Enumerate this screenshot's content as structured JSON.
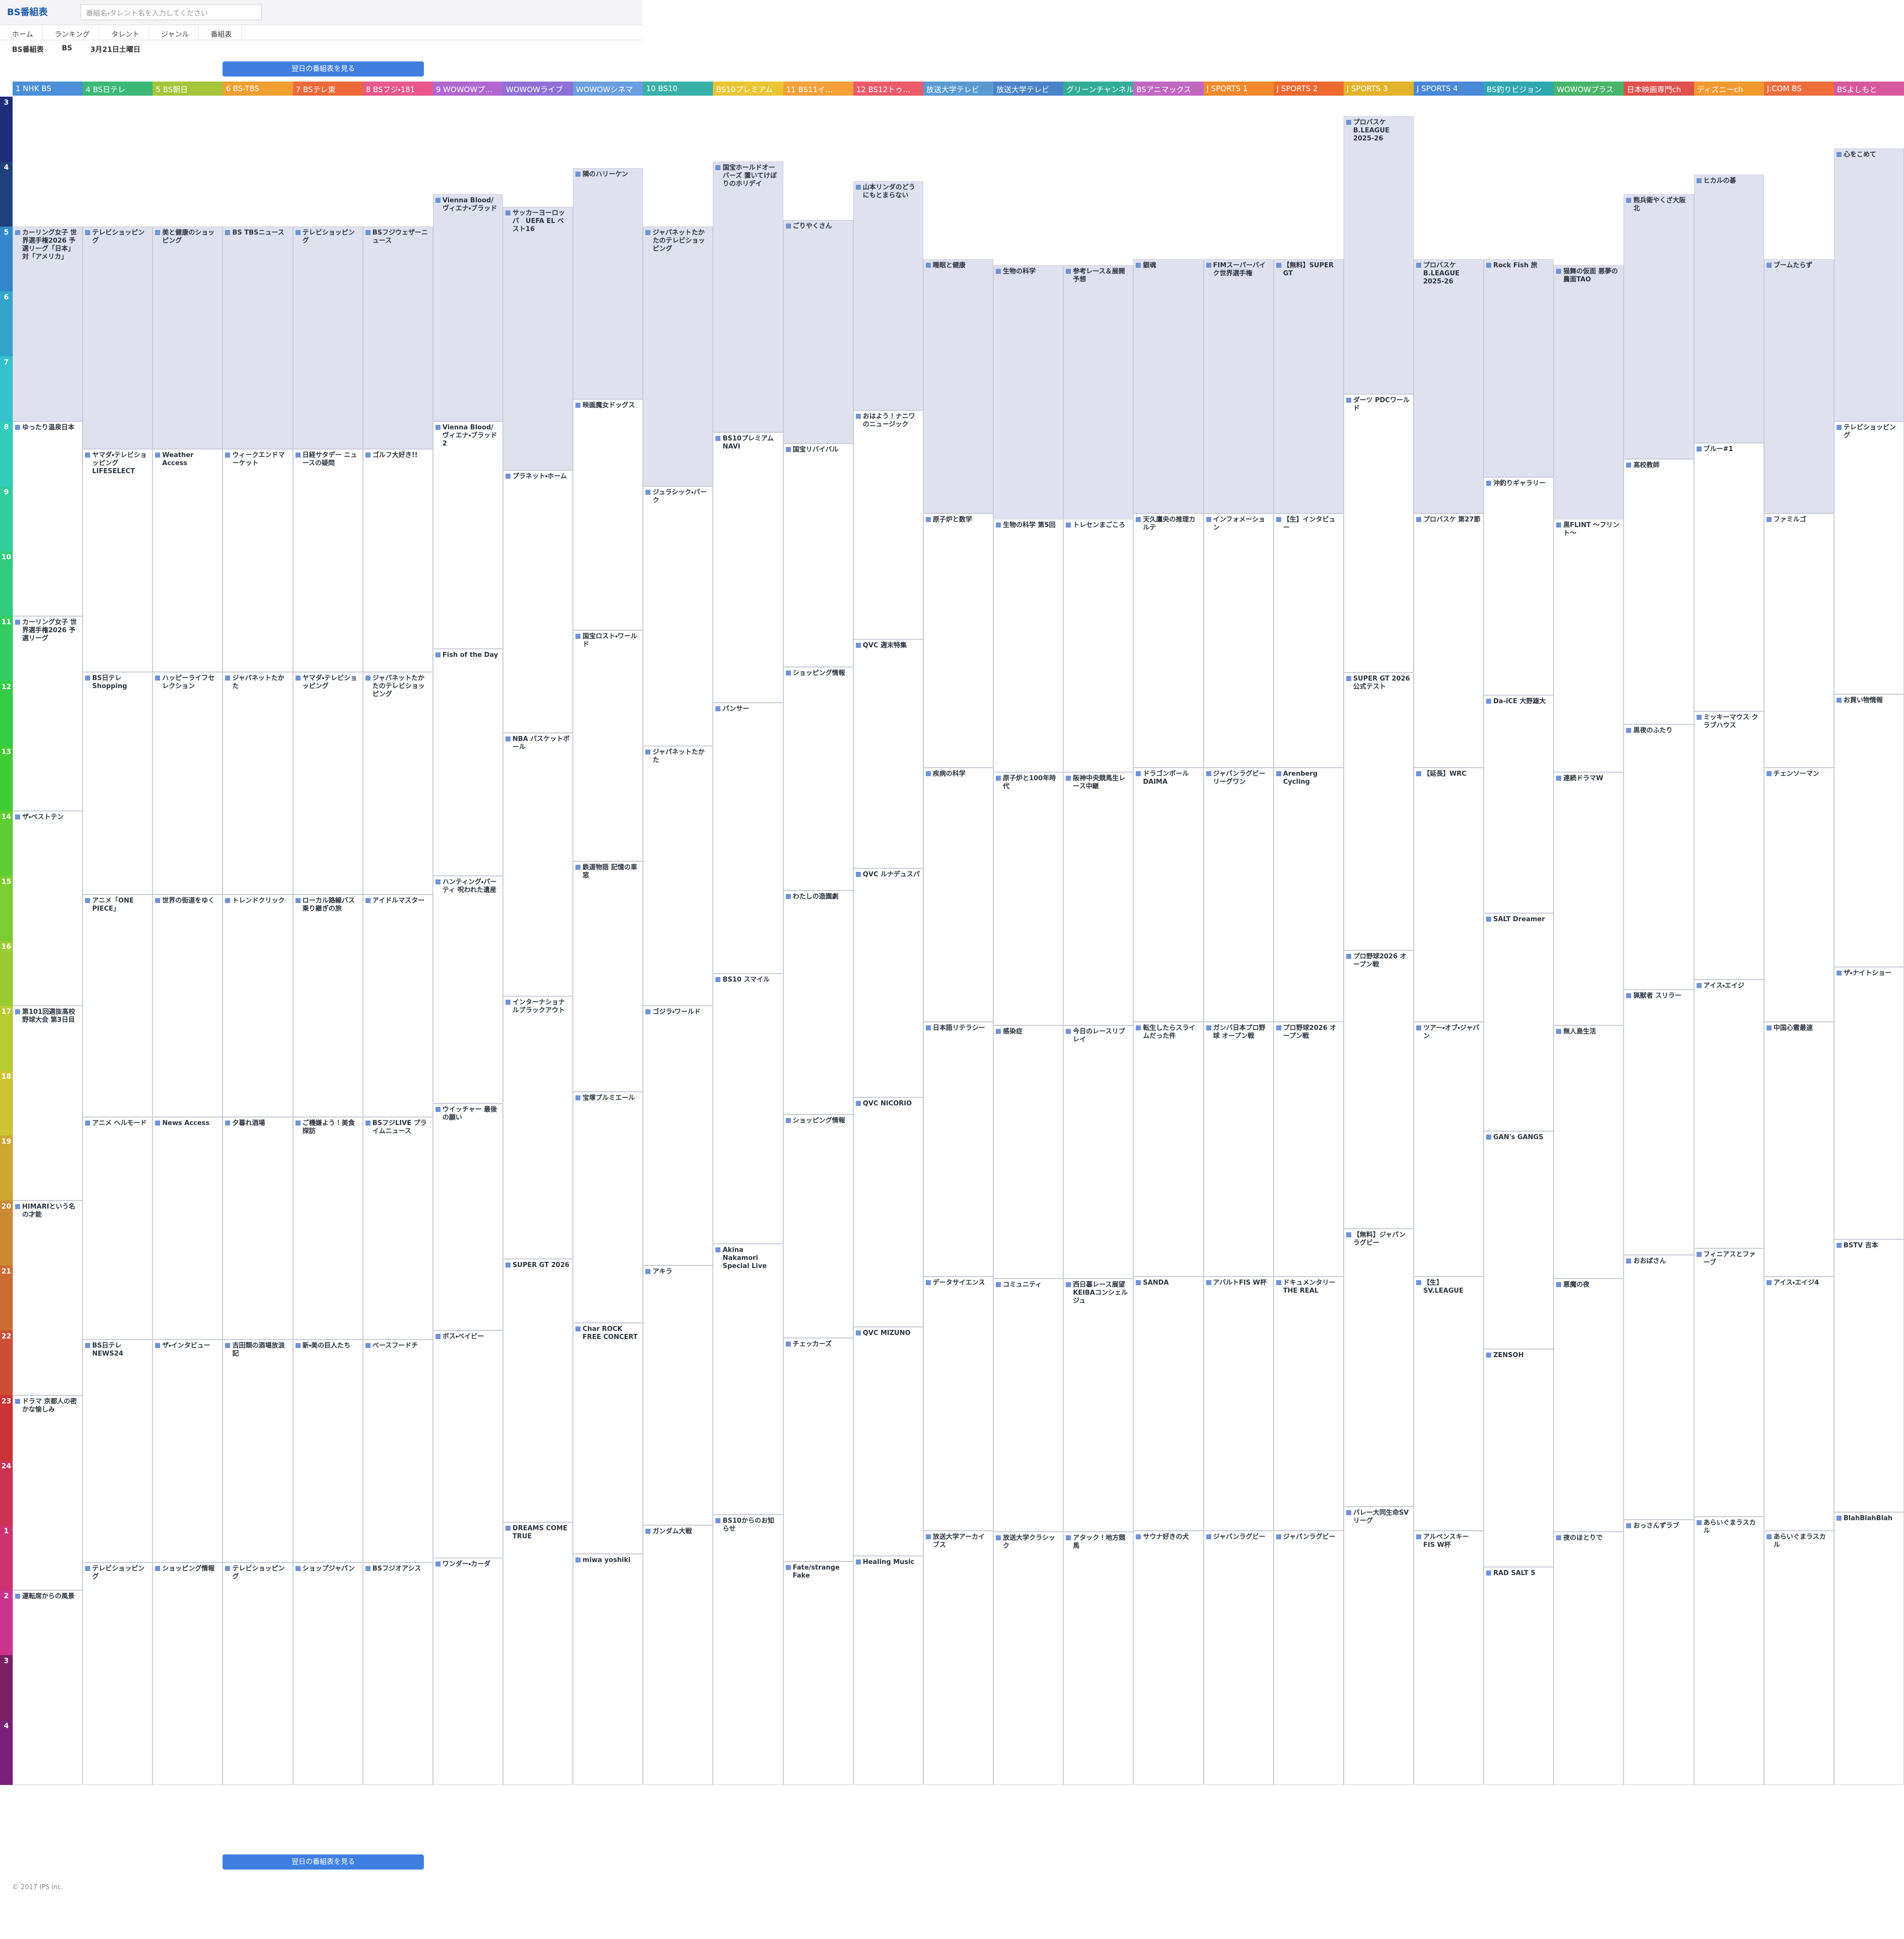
{
  "header": {
    "logo": "BS番組表",
    "search_placeholder": "番組名・タレント名を入力してください"
  },
  "nav": [
    "ホーム",
    "ランキング",
    "タレント",
    "ジャンル",
    "番組表"
  ],
  "selectors": [
    "BS番組表",
    "BS",
    "3月21日土曜日"
  ],
  "next_day_button": "翌日の番組表を見る",
  "hours": [
    3,
    4,
    5,
    6,
    7,
    8,
    9,
    10,
    11,
    12,
    13,
    14,
    15,
    16,
    17,
    18,
    19,
    20,
    21,
    22,
    23,
    24,
    1,
    2,
    3,
    4
  ],
  "channels": [
    {
      "name": "1 NHK BS",
      "color": "#4a8fd8",
      "programs": [
        "カーリング女子 世界選手権2026 予選リーグ「日本」対「アメリカ」",
        "ゆったり温泉日本",
        "カーリング女子 世界選手権2026 予選リーグ",
        "ザ・ベストテン",
        "第101回選抜高校野球大会 第3日目",
        "HIMARIという名の才能",
        "ドラマ 京都人の密かな愉しみ",
        "運転席からの風景"
      ]
    },
    {
      "name": "4 BS日テレ",
      "color": "#3cb878",
      "programs": [
        "テレビショッピング",
        "ヤマダ・テレビショッピング LIFESELECT",
        "BS日テレ Shopping",
        "アニメ「ONE PIECE」",
        "アニメ ヘルモード",
        "BS日テレNEWS24",
        "テレビショッピング"
      ]
    },
    {
      "name": "5 BS朝日",
      "color": "#a6c53a",
      "programs": [
        "美と健康のショッピング",
        "Weather Access",
        "ハッピーライフセレクション",
        "世界の街道をゆく",
        "News Access",
        "ザ・インタビュー",
        "ショッピング情報"
      ]
    },
    {
      "name": "6 BS-TBS",
      "color": "#f0a030",
      "programs": [
        "BS TBSニュース",
        "ウィークエンドマーケット",
        "ジャパネットたかた",
        "トレンドクリック",
        "夕暮れ酒場",
        "吉田類の酒場放浪記",
        "テレビショッピング"
      ]
    },
    {
      "name": "7 BSテレ東",
      "color": "#ef6a3a",
      "programs": [
        "テレビショッピング",
        "日経サタデー ニュースの疑問",
        "ヤマダ・テレビショッピング",
        "ローカル路線バス乗り継ぎの旅",
        "ご機嫌よう！美食探訪",
        "新・美の巨人たち",
        "ショップジャパン"
      ]
    },
    {
      "name": "8 BSフジ・181",
      "color": "#e8588a",
      "programs": [
        "BSフジウェザーニュース",
        "ゴルフ大好き!!",
        "ジャパネットたかたのテレビショッピング",
        "アイドルマスター",
        "BSフジLIVE プライムニュース",
        "ベースフードチ",
        "BSフジオアシス"
      ]
    },
    {
      "name": "9 WOWOWプ…",
      "color": "#b068d0",
      "programs": [
        "Vienna Blood/ヴィエナ・ブラッド",
        "Vienna Blood/ヴィエナ・ブラッド 2",
        "Fish of the Day",
        "ハンティング・パーティ 呪われた遺産",
        "ウイッチャー 最後の願い",
        "ボス・ベイビー",
        "ワンダー・カーダ"
      ]
    },
    {
      "name": "WOWOWライブ",
      "color": "#8e70d6",
      "programs": [
        "サッカーヨーロッパ　UEFA EL ベスト16",
        "プラネット・ホーム",
        "NBA バスケットボール",
        "インターナショナルブラックアウト",
        "SUPER GT 2026",
        "DREAMS COME TRUE"
      ]
    },
    {
      "name": "WOWOWシネマ",
      "color": "#6a9ee0",
      "programs": [
        "隣のハリーケン",
        "映画魔女ドッグス",
        "国宝ロスト・ワールド",
        "鉄道物語 記憶の車窓",
        "宝塚プルミエール",
        "Char ROCK FREE CONCERT",
        "miwa yoshiki"
      ]
    },
    {
      "name": "10 BS10",
      "color": "#39b0a8",
      "programs": [
        "ジャパネットたかたのテレビショッピング",
        "ジュラシック・パーク",
        "ジャパネットたかた",
        "ゴジラ・ワールド",
        "アキラ",
        "ガンダム大戦"
      ]
    },
    {
      "name": "BS10プレミアム",
      "color": "#e9c533",
      "programs": [
        "国宝ホールドオーバーズ 置いてけぼりのホリデイ",
        "BS10プレミアム NAVI",
        "パンサー",
        "BS10 スマイル",
        "Akina Nakamori Special Live",
        "BS10からのお知らせ"
      ]
    },
    {
      "name": "11 BS11イ…",
      "color": "#f5a03a",
      "programs": [
        "ごりやくさん",
        "国宝リバイバル",
        "ショッピング情報",
        "わたしの造園劇",
        "ショッピング情報",
        "チェッカーズ",
        "Fate/strange Fake"
      ]
    },
    {
      "name": "12 BS12トゥ…",
      "color": "#ee5a6a",
      "programs": [
        "山本リンダのどうにもとまらない",
        "おはよう！ナニワのニュージック",
        "QVC 週末特集",
        "QVC ルナデュスパ",
        "QVC NICORIO",
        "QVC MIZUNO",
        "Healing Music"
      ]
    },
    {
      "name": "放送大学テレビ",
      "color": "#5a9ad0",
      "programs": [
        "睡眠と健康",
        "原子炉と数学",
        "疾病の科学",
        "日本語リテラシー",
        "データサイエンス",
        "放送大学アーカイブス"
      ]
    },
    {
      "name": "放送大学テレビ",
      "color": "#4a84c8",
      "programs": [
        "生物の科学",
        "生物の科学 第5回",
        "原子炉と100年時代",
        "感染症",
        "コミュニティ",
        "放送大学クラシック"
      ]
    },
    {
      "name": "グリーンチャンネル",
      "color": "#34ad98",
      "programs": [
        "参考レース＆展開予想",
        "トレセンまごころ",
        "阪神中央競馬生レース中継",
        "今日のレースリプレイ",
        "西日暮レース展望 KEIBAコンシェルジュ",
        "アタック！地方競馬"
      ]
    },
    {
      "name": "BSアニマックス",
      "color": "#c068c0",
      "programs": [
        "銀魂",
        "天久鷹央の推理カルテ",
        "ドラゴンボール DAIMA",
        "転生したらスライムだった件",
        "SANDA",
        "サウナ好きの犬"
      ]
    },
    {
      "name": "J SPORTS 1",
      "color": "#f28a2c",
      "programs": [
        "FIMスーパーバイク世界選手権",
        "インフォメーション",
        "ジャパンラグビー リーグワン",
        "ガンバ日本プロ野球 オープン戦",
        "アバルトFIS W杯",
        "ジャパンラグビー"
      ]
    },
    {
      "name": "J SPORTS 2",
      "color": "#ee6a30",
      "programs": [
        "【無料】SUPER GT",
        "【生】インタビュー",
        "Arenberg Cycling",
        "プロ野球2026 オープン戦",
        "ドキュメンタリー THE REAL",
        "ジャパンラグビー"
      ]
    },
    {
      "name": "J SPORTS 3",
      "color": "#e3b32c",
      "programs": [
        "プロバスケ B.LEAGUE 2025-26",
        "ダーツ PDCワールド",
        "SUPER GT 2026 公式テスト",
        "プロ野球2026 オープン戦",
        "【無料】ジャパンラグビー",
        "バレー大同生命SVリーグ"
      ]
    },
    {
      "name": "J SPORTS 4",
      "color": "#4a88d8",
      "programs": [
        "プロバスケ B.LEAGUE 2025-26",
        "プロバスケ 第27節",
        "【延長】WRC",
        "ツアー・オブ・ジャパン",
        "【生】SV.LEAGUE",
        "アルペンスキー FIS W杯"
      ]
    },
    {
      "name": "BS釣りビジョン",
      "color": "#2fa7b0",
      "programs": [
        "Rock Fish 旅",
        "沖釣りギャラリー",
        "Da-iCE 大野雄大",
        "SALT Dreamer",
        "GAN's GANGS",
        "ZENSOH",
        "RAD SALT 5"
      ]
    },
    {
      "name": "WOWOWプラス",
      "color": "#49b56a",
      "programs": [
        "猫舞の仮面 悪夢の農面TAO",
        "黒FLINT 〜フリント〜",
        "連続ドラマW",
        "無人島生活",
        "悪魔の夜",
        "夜のほとりで"
      ]
    },
    {
      "name": "日本映画専門ch",
      "color": "#e0504c",
      "programs": [
        "熊兵衛やくざ大阪北",
        "高校教師",
        "黒夜のふたり",
        "猟獣者 スリラー",
        "おおばさん",
        "おっさんずラブ"
      ]
    },
    {
      "name": "ディズニーch",
      "color": "#f29a30",
      "programs": [
        "ヒカルの碁",
        "ブルー#1",
        "ミッキーマウス クラブハウス",
        "アイス・エイジ",
        "フィニアスとファーブ",
        "あらいぐまラスカル"
      ]
    },
    {
      "name": "J:COM BS",
      "color": "#ef6e3c",
      "programs": [
        "ブームたらず",
        "ファミルゴ",
        "チェンソーマン",
        "中国心霊最速",
        "アイス・エイジ4",
        "あらいぐまラスカル"
      ]
    },
    {
      "name": "BSよしもと",
      "color": "#d8589c",
      "programs": [
        "心をこめて",
        "テレビショッピング",
        "お買い物情報",
        "ザ・ナイトショー",
        "BSTV 吉本",
        "BlahBlahBlah"
      ]
    }
  ],
  "footer": "© 2017 IPS inc."
}
